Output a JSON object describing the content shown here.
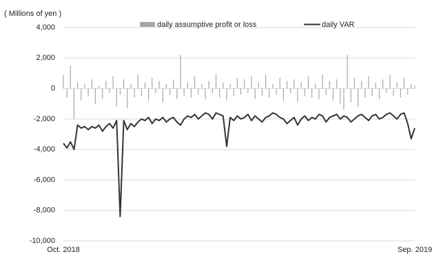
{
  "chart_data": {
    "type": "bar_line",
    "y_label": "( Millions of yen )",
    "categories": [
      "Oct. 2018",
      null,
      null,
      null,
      null,
      null,
      null,
      null,
      null,
      null,
      null,
      null,
      null,
      null,
      null,
      null,
      null,
      null,
      null,
      null,
      null,
      null,
      null,
      null,
      null,
      null,
      null,
      null,
      null,
      null,
      null,
      null,
      null,
      null,
      null,
      null,
      null,
      null,
      null,
      null,
      null,
      null,
      null,
      null,
      null,
      null,
      null,
      null,
      null,
      null,
      null,
      null,
      null,
      null,
      null,
      null,
      null,
      null,
      null,
      null,
      null,
      null,
      null,
      null,
      null,
      null,
      null,
      null,
      null,
      null,
      null,
      null,
      null,
      null,
      null,
      null,
      null,
      null,
      null,
      null,
      null,
      null,
      null,
      null,
      null,
      null,
      null,
      null,
      null,
      null,
      null,
      null,
      null,
      null,
      null,
      null,
      null,
      null,
      null,
      "Sep. 2019"
    ],
    "series": [
      {
        "name": "daily assumptive profit or loss",
        "kind": "bar",
        "color": "#a6a6a6",
        "values": [
          900,
          -600,
          1500,
          -2000,
          400,
          -800,
          300,
          -500,
          600,
          -1000,
          200,
          -700,
          500,
          -300,
          800,
          -1200,
          -400,
          600,
          -1300,
          300,
          -600,
          900,
          -500,
          400,
          -800,
          700,
          -300,
          500,
          -900,
          300,
          -400,
          600,
          -700,
          2200,
          -500,
          400,
          -600,
          800,
          -400,
          300,
          -700,
          500,
          -300,
          900,
          -600,
          400,
          -800,
          300,
          -500,
          700,
          -400,
          600,
          -300,
          800,
          -700,
          400,
          -500,
          900,
          -600,
          300,
          -400,
          700,
          -800,
          500,
          -300,
          600,
          -900,
          400,
          -500,
          800,
          -600,
          300,
          -700,
          900,
          -400,
          500,
          -800,
          600,
          -1000,
          -1400,
          2200,
          -900,
          700,
          -1200,
          500,
          -600,
          800,
          -500,
          400,
          -700,
          600,
          -300,
          900,
          -500,
          400,
          -600,
          700,
          -400,
          300,
          200
        ]
      },
      {
        "name": "daily VAR",
        "kind": "line",
        "color": "#333333",
        "values": [
          -3600,
          -3900,
          -3500,
          -4000,
          -2400,
          -2600,
          -2500,
          -2700,
          -2500,
          -2600,
          -2400,
          -2800,
          -2500,
          -2300,
          -2600,
          -2100,
          -8400,
          -2100,
          -2700,
          -2300,
          -2500,
          -2200,
          -2000,
          -2100,
          -1900,
          -2300,
          -2000,
          -2100,
          -1900,
          -2200,
          -2000,
          -1900,
          -2200,
          -2400,
          -2000,
          -1800,
          -1900,
          -1700,
          -2000,
          -1800,
          -1600,
          -1700,
          -2000,
          -1600,
          -1700,
          -1800,
          -3800,
          -1900,
          -2100,
          -1800,
          -2000,
          -1900,
          -1700,
          -2100,
          -1800,
          -2000,
          -2200,
          -1900,
          -1800,
          -1600,
          -1700,
          -1900,
          -2000,
          -2300,
          -2100,
          -1900,
          -2400,
          -2000,
          -1800,
          -2100,
          -1900,
          -2000,
          -1700,
          -1800,
          -2200,
          -1900,
          -1800,
          -1700,
          -2000,
          -1800,
          -1900,
          -2200,
          -2000,
          -1800,
          -1700,
          -1900,
          -2100,
          -1800,
          -1700,
          -2000,
          -1900,
          -1700,
          -1600,
          -1800,
          -2000,
          -1700,
          -1600,
          -2300,
          -3300,
          -2600
        ]
      }
    ],
    "ylim": [
      -10000,
      4000
    ],
    "yticks": [
      {
        "value": -10000,
        "label": "-10,000"
      },
      {
        "value": -8000,
        "label": "-8,000"
      },
      {
        "value": -6000,
        "label": "-6,000"
      },
      {
        "value": -4000,
        "label": "-4,000"
      },
      {
        "value": -2000,
        "label": "-2,000"
      },
      0,
      {
        "value": 2000,
        "label": "2,000"
      },
      {
        "value": 4000,
        "label": "4,000"
      }
    ],
    "grid": true,
    "legend": "top"
  }
}
